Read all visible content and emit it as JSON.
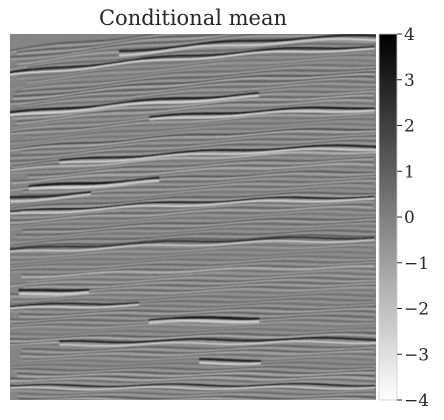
{
  "chart_data": {
    "type": "heatmap",
    "title": "Conditional mean",
    "xlabel": "",
    "ylabel": "",
    "colormap": "Greys (white = -4, black = 4)",
    "colorbar": {
      "range": [
        -4,
        4
      ],
      "ticks": [
        4,
        3,
        2,
        1,
        0,
        -1,
        -2,
        -3,
        -4
      ],
      "tick_labels": [
        "4",
        "3",
        "2",
        "1",
        "0",
        "−1",
        "−2",
        "−3",
        "−4"
      ]
    },
    "background_value": 0,
    "grid": false
  }
}
